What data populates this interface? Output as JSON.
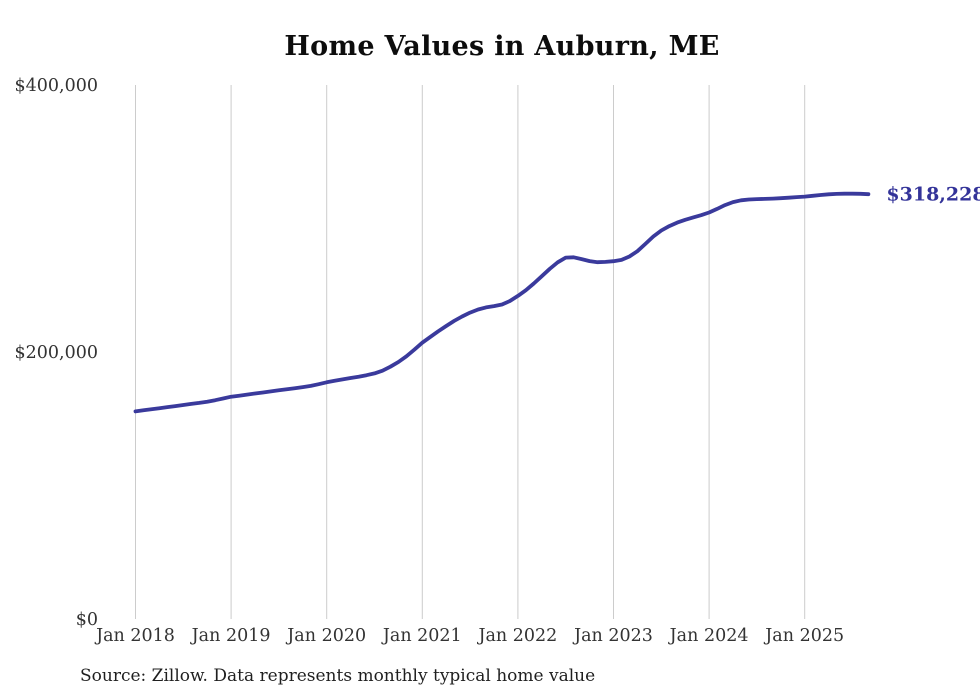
{
  "page": {
    "title": "Home Values in Auburn, ME"
  },
  "annotation": {
    "final_value_label": "$318,228"
  },
  "source_note": "Source: Zillow. Data represents monthly typical home value",
  "colors": {
    "line": "#3a3a9c",
    "final_label": "#333399",
    "grid": "#cccccc",
    "axis_text": "#333333",
    "title_text": "#0d0d0d",
    "background": "#ffffff"
  },
  "chart_data": {
    "type": "line",
    "title": "Home Values in Auburn, ME",
    "xlabel": "",
    "ylabel": "",
    "ylim": [
      0,
      400000
    ],
    "y_ticks": [
      {
        "value": 0,
        "label": "$0"
      },
      {
        "value": 200000,
        "label": "$200,000"
      },
      {
        "value": 400000,
        "label": "$400,000"
      }
    ],
    "x_tick_labels": [
      "Jan 2018",
      "Jan 2019",
      "Jan 2020",
      "Jan 2021",
      "Jan 2022",
      "Jan 2023",
      "Jan 2024",
      "Jan 2025"
    ],
    "grid": "vertical-only",
    "legend": "none",
    "final_value": 318228,
    "series": [
      {
        "name": "Monthly typical home value",
        "x": [
          "2018-01",
          "2018-02",
          "2018-03",
          "2018-04",
          "2018-05",
          "2018-06",
          "2018-07",
          "2018-08",
          "2018-09",
          "2018-10",
          "2018-11",
          "2018-12",
          "2019-01",
          "2019-02",
          "2019-03",
          "2019-04",
          "2019-05",
          "2019-06",
          "2019-07",
          "2019-08",
          "2019-09",
          "2019-10",
          "2019-11",
          "2019-12",
          "2020-01",
          "2020-02",
          "2020-03",
          "2020-04",
          "2020-05",
          "2020-06",
          "2020-07",
          "2020-08",
          "2020-09",
          "2020-10",
          "2020-11",
          "2020-12",
          "2021-01",
          "2021-02",
          "2021-03",
          "2021-04",
          "2021-05",
          "2021-06",
          "2021-07",
          "2021-08",
          "2021-09",
          "2021-10",
          "2021-11",
          "2021-12",
          "2022-01",
          "2022-02",
          "2022-03",
          "2022-04",
          "2022-05",
          "2022-06",
          "2022-07",
          "2022-08",
          "2022-09",
          "2022-10",
          "2022-11",
          "2022-12",
          "2023-01",
          "2023-02",
          "2023-03",
          "2023-04",
          "2023-05",
          "2023-06",
          "2023-07",
          "2023-08",
          "2023-09",
          "2023-10",
          "2023-11",
          "2023-12",
          "2024-01",
          "2024-02",
          "2024-03",
          "2024-04",
          "2024-05",
          "2024-06",
          "2024-07",
          "2024-08",
          "2024-09",
          "2024-10",
          "2024-11",
          "2024-12",
          "2025-01",
          "2025-02",
          "2025-03",
          "2025-04",
          "2025-05",
          "2025-06",
          "2025-07",
          "2025-08",
          "2025-09"
        ],
        "values": [
          155500,
          156300,
          157100,
          157900,
          158700,
          159500,
          160300,
          161100,
          161900,
          162800,
          163900,
          165200,
          166500,
          167300,
          168100,
          168900,
          169700,
          170500,
          171300,
          172100,
          172900,
          173700,
          174600,
          175900,
          177300,
          178400,
          179500,
          180500,
          181500,
          182600,
          184000,
          186000,
          189000,
          192500,
          196800,
          201700,
          207000,
          211300,
          215500,
          219500,
          223300,
          226600,
          229500,
          231800,
          233400,
          234400,
          235600,
          238200,
          242000,
          246300,
          251300,
          256800,
          262300,
          267200,
          270700,
          270900,
          269600,
          268100,
          267300,
          267500,
          268000,
          269000,
          271500,
          275500,
          281000,
          286500,
          291000,
          294300,
          296900,
          299000,
          300800,
          302500,
          304500,
          307200,
          310000,
          312300,
          313600,
          314200,
          314500,
          314700,
          314900,
          315200,
          315600,
          316000,
          316400,
          317000,
          317600,
          318100,
          318400,
          318600,
          318600,
          318500,
          318228
        ]
      }
    ]
  }
}
